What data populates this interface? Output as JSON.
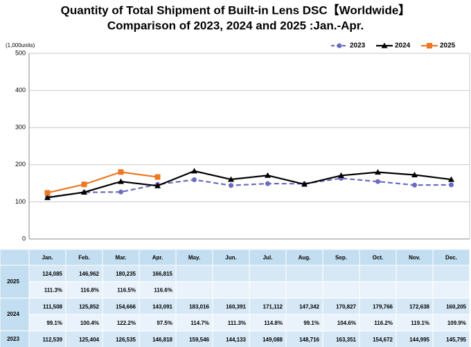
{
  "chart_data": {
    "type": "line",
    "title": "Quantity of Total Shipment of Built-in Lens DSC【Worldwide】",
    "subtitle": "Comparison of 2023, 2024 and 2025 :Jan.-Apr.",
    "y_label": "(1,000units)",
    "categories": [
      "Jan.",
      "Feb.",
      "Mar.",
      "Apr.",
      "May.",
      "Jun.",
      "Jul.",
      "Aug.",
      "Sep.",
      "Oct.",
      "Nov.",
      "Dec."
    ],
    "ylim": [
      0,
      500
    ],
    "yticks": [
      0,
      100,
      200,
      300,
      400,
      500
    ],
    "grid": true,
    "legend": "top-right",
    "series": [
      {
        "name": "2023",
        "color": "#6b6bbf",
        "line_style": "dashed",
        "marker": "circle",
        "values": [
          112.539,
          125.404,
          126.535,
          146.818,
          159.546,
          144.133,
          149.088,
          148.716,
          163.351,
          154.672,
          144.995,
          145.795
        ],
        "value_labels": [
          "112,539",
          "125,404",
          "126,535",
          "146,818",
          "159,546",
          "144,133",
          "149,088",
          "148,716",
          "163,351",
          "154,672",
          "144,995",
          "145,795"
        ]
      },
      {
        "name": "2024",
        "color": "#000000",
        "line_style": "solid",
        "marker": "triangle",
        "values": [
          111.508,
          125.852,
          154.666,
          143.091,
          183.016,
          160.391,
          171.112,
          147.342,
          170.827,
          179.766,
          172.638,
          160.205
        ],
        "value_labels": [
          "111,508",
          "125,852",
          "154,666",
          "143,091",
          "183,016",
          "160,391",
          "171,112",
          "147,342",
          "170,827",
          "179,766",
          "172,638",
          "160,205"
        ],
        "yoy_labels": [
          "99.1%",
          "100.4%",
          "122.2%",
          "97.5%",
          "114.7%",
          "111.3%",
          "114.8%",
          "99.1%",
          "104.6%",
          "116.2%",
          "119.1%",
          "109.9%"
        ]
      },
      {
        "name": "2025",
        "color": "#ee7722",
        "line_style": "solid",
        "marker": "square",
        "values": [
          124.085,
          146.962,
          180.235,
          166.815,
          null,
          null,
          null,
          null,
          null,
          null,
          null,
          null
        ],
        "value_labels": [
          "124,085",
          "146,962",
          "180,235",
          "166,815",
          null,
          null,
          null,
          null,
          null,
          null,
          null,
          null
        ],
        "yoy_labels": [
          "111.3%",
          "116.8%",
          "116.5%",
          "116.6%",
          null,
          null,
          null,
          null,
          null,
          null,
          null,
          null
        ]
      }
    ]
  }
}
